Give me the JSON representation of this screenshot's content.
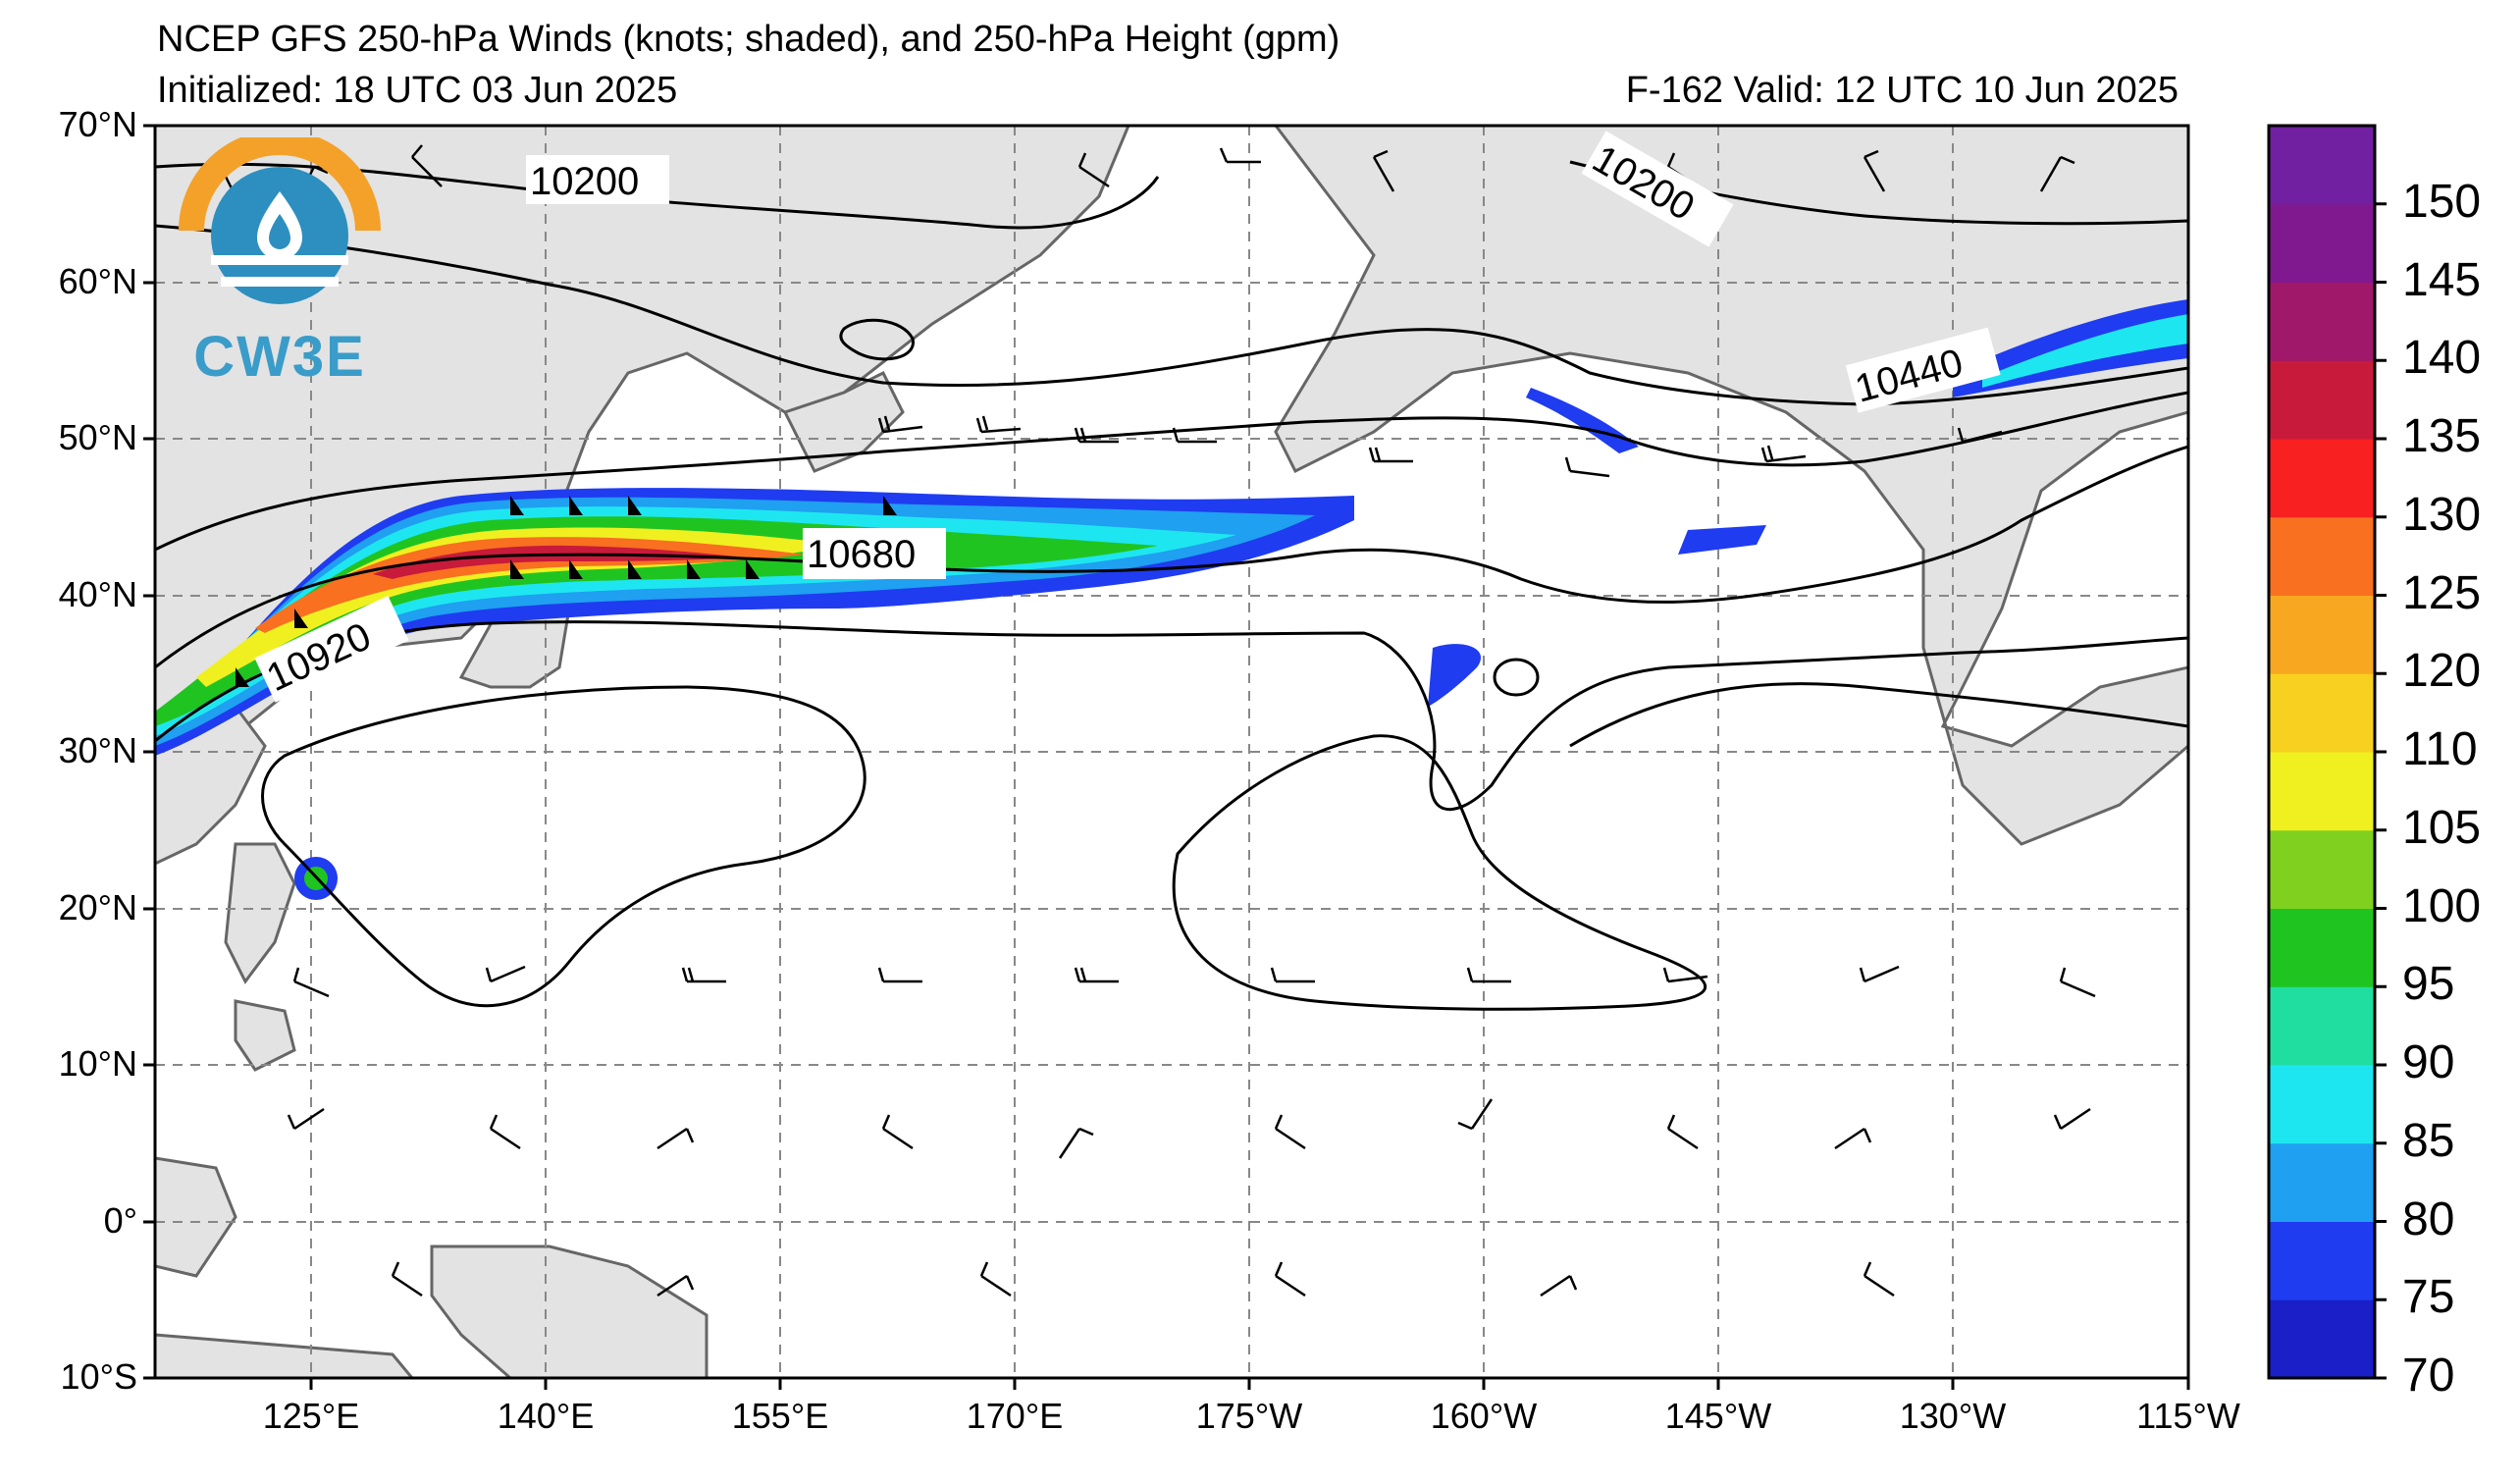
{
  "header": {
    "title": "NCEP GFS 250-hPa Winds (knots; shaded), and 250-hPa Height (gpm)",
    "initialized": "Initialized: 18 UTC 03 Jun 2025",
    "valid": "F-162  Valid: 12 UTC 10 Jun 2025"
  },
  "logo": {
    "text": "CW3E"
  },
  "map": {
    "projection": "PlateCarree",
    "lon_range": "115°E to 115°W",
    "lat_range": "10°S to 70°N",
    "land_color": "#e3e3e3",
    "ocean_color": "#ffffff",
    "grid_style": "dashed grey"
  },
  "axes": {
    "lat_labels": [
      "70°N",
      "60°N",
      "50°N",
      "40°N",
      "30°N",
      "20°N",
      "10°N",
      "0°",
      "10°S"
    ],
    "lon_labels": [
      "125°E",
      "140°E",
      "155°E",
      "170°E",
      "175°W",
      "160°W",
      "145°W",
      "130°W",
      "115°W"
    ]
  },
  "contours": {
    "labels": [
      "10200",
      "10200",
      "10440",
      "10680",
      "10920"
    ]
  },
  "colorbar": {
    "levels": [
      "70",
      "75",
      "80",
      "85",
      "90",
      "95",
      "100",
      "105",
      "110",
      "120",
      "125",
      "130",
      "135",
      "140",
      "145",
      "150"
    ],
    "colors": [
      "#1a1fc7",
      "#1f3cf0",
      "#1fa0f0",
      "#1ee6f0",
      "#20dea0",
      "#20c420",
      "#80d020",
      "#f0f020",
      "#f8d020",
      "#f8a820",
      "#f87020",
      "#f82020",
      "#c81a3a",
      "#a0186a",
      "#801890",
      "#7020a0"
    ]
  }
}
